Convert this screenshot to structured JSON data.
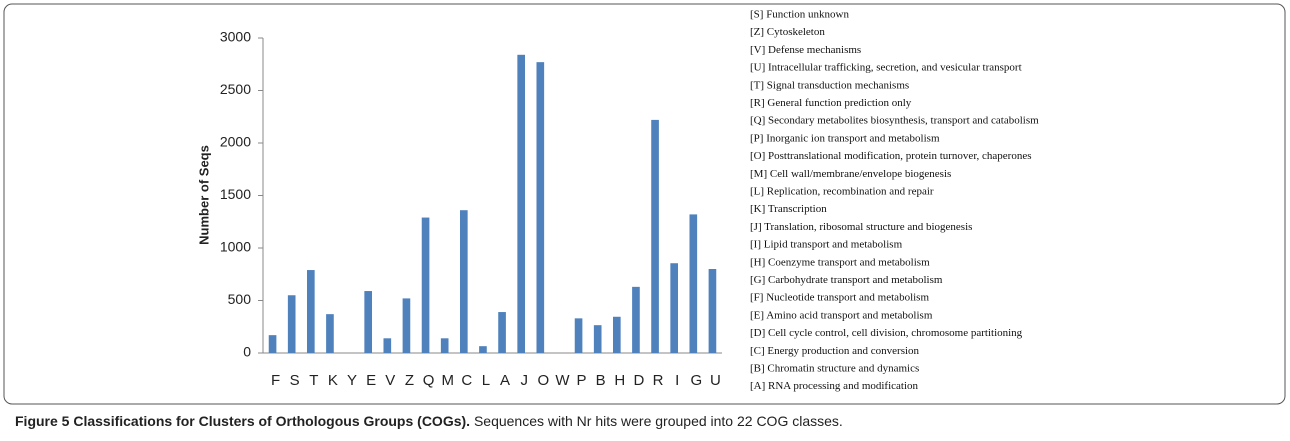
{
  "chart_data": {
    "type": "bar",
    "y_label": "Number of Seqs",
    "categories": [
      "F",
      "S",
      "T",
      "K",
      "Y",
      "E",
      "V",
      "Z",
      "Q",
      "M",
      "C",
      "L",
      "A",
      "J",
      "O",
      "W",
      "P",
      "B",
      "H",
      "D",
      "R",
      "I",
      "G",
      "U"
    ],
    "values": [
      170,
      550,
      790,
      370,
      0,
      590,
      140,
      520,
      1290,
      140,
      1360,
      65,
      390,
      2840,
      2770,
      0,
      330,
      265,
      345,
      630,
      2220,
      855,
      1320,
      800
    ],
    "color": "#4f81bd",
    "ylim": [
      0,
      3000
    ],
    "yticks": [
      0,
      500,
      1000,
      1500,
      2000,
      2500,
      3000
    ],
    "legend_text": [
      "[S] Function unknown",
      "[Z] Cytoskeleton",
      "[V] Defense mechanisms",
      "[U] Intracellular trafficking, secretion, and vesicular transport",
      "[T] Signal transduction mechanisms",
      "[R] General function prediction only",
      "[Q] Secondary metabolites biosynthesis, transport and catabolism",
      "[P] Inorganic ion transport and metabolism",
      "[O] Posttranslational modification, protein turnover, chaperones",
      "[M] Cell wall/membrane/envelope biogenesis",
      "[L] Replication, recombination and repair",
      "[K] Transcription",
      "[J] Translation, ribosomal structure and biogenesis",
      "[I] Lipid transport and metabolism",
      "[H] Coenzyme transport and metabolism",
      "[G] Carbohydrate transport and metabolism",
      "[F] Nucleotide transport and metabolism",
      "[E] Amino acid transport and metabolism",
      "[D] Cell cycle control, cell division, chromosome partitioning",
      "[C] Energy production and conversion",
      "[B] Chromatin structure and dynamics",
      "[A] RNA processing and modification"
    ]
  },
  "caption": {
    "label": "Figure 5 Classifications for Clusters of Orthologous Groups (COGs).",
    "text": "Sequences with Nr hits were grouped into 22 COG classes."
  }
}
